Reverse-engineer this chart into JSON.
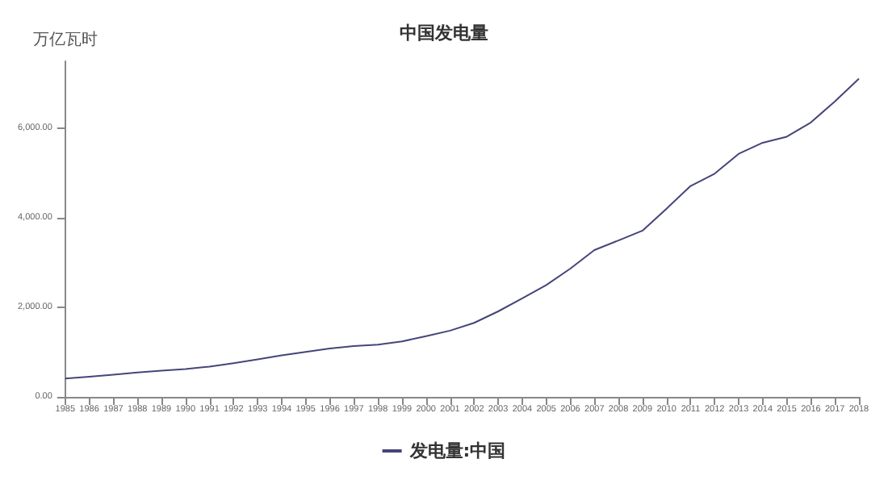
{
  "chart_data": {
    "type": "line",
    "title": "中国发电量",
    "ylabel": "万亿瓦时",
    "categories": [
      "1985",
      "1986",
      "1987",
      "1988",
      "1989",
      "1990",
      "1991",
      "1992",
      "1993",
      "1994",
      "1995",
      "1996",
      "1997",
      "1998",
      "1999",
      "2000",
      "2001",
      "2002",
      "2003",
      "2004",
      "2005",
      "2006",
      "2007",
      "2008",
      "2009",
      "2010",
      "2011",
      "2012",
      "2013",
      "2014",
      "2015",
      "2016",
      "2017",
      "2018"
    ],
    "series": [
      {
        "name": "发电量:中国",
        "color": "#45457a",
        "values": [
          411,
          450,
          497,
          545,
          585,
          621,
          678,
          754,
          840,
          928,
          1007,
          1081,
          1136,
          1167,
          1239,
          1356,
          1481,
          1654,
          1911,
          2203,
          2500,
          2866,
          3282,
          3496,
          3715,
          4207,
          4713,
          4988,
          5432,
          5680,
          5815,
          6133,
          6604,
          7112
        ]
      }
    ],
    "ylim": [
      0,
      7500
    ],
    "yticks": [
      {
        "value": 0,
        "label": "0.00"
      },
      {
        "value": 2000,
        "label": "2,000.00"
      },
      {
        "value": 4000,
        "label": "4,000.00"
      },
      {
        "value": 6000,
        "label": "6,000.00"
      }
    ],
    "grid": false,
    "legend": "bottom",
    "marker": "none",
    "line_style": "solid"
  }
}
